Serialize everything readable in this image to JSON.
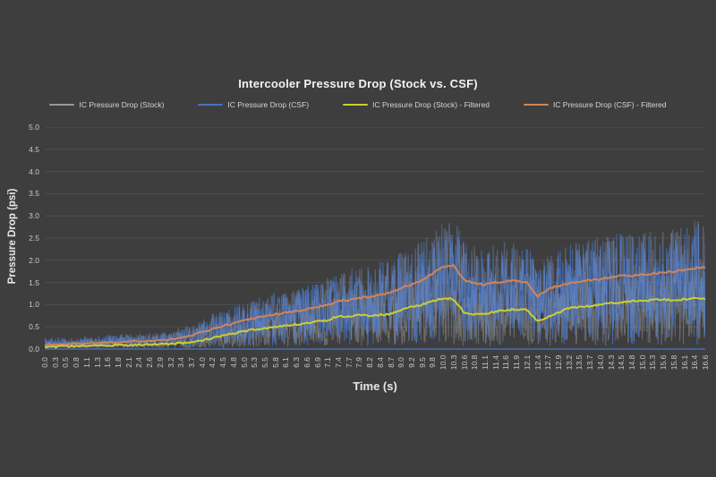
{
  "window": {
    "background": "#3e3e3e"
  },
  "chart": {
    "title": "Intercooler Pressure Drop (Stock vs. CSF)",
    "x_axis_title": "Time (s)",
    "y_axis_title": "Pressure Drop (psi)",
    "legend": [
      {
        "label": "IC Pressure Drop (Stock)",
        "color": "#9a9a9a"
      },
      {
        "label": "IC Pressure Drop (CSF)",
        "color": "#4472c4"
      },
      {
        "label": "IC Pressure Drop (Stock) - Filtered",
        "color": "#c9cf33"
      },
      {
        "label": "IC Pressure Drop (CSF) - Filtered",
        "color": "#d0845a"
      }
    ]
  },
  "chart_data": {
    "type": "line",
    "title": "Intercooler Pressure Drop (Stock vs. CSF)",
    "xlabel": "Time (s)",
    "ylabel": "Pressure Drop (psi)",
    "ylim": [
      0,
      5
    ],
    "ytick_labels": [
      "5.0",
      "4.5",
      "4.0",
      "3.5",
      "3.0",
      "2.5",
      "2.0",
      "1.5",
      "1.0",
      "0.5",
      "0.0"
    ],
    "grid": true,
    "legend_position": "top",
    "background": "#3e3e3e",
    "gridline_color": "#4f4f4f",
    "baseline_color": "#4a6db0",
    "noise_seed": 1234,
    "samples": 1300,
    "categories": [
      "0.0",
      "0.3",
      "0.5",
      "0.8",
      "1.1",
      "1.3",
      "1.6",
      "1.8",
      "2.1",
      "2.4",
      "2.6",
      "2.9",
      "3.2",
      "3.4",
      "3.7",
      "4.0",
      "4.2",
      "4.5",
      "4.8",
      "5.0",
      "5.3",
      "5.5",
      "5.8",
      "6.1",
      "6.3",
      "6.6",
      "6.9",
      "7.1",
      "7.4",
      "7.7",
      "7.9",
      "8.2",
      "8.4",
      "8.7",
      "9.0",
      "9.2",
      "9.5",
      "9.8",
      "10.0",
      "10.3",
      "10.6",
      "10.8",
      "11.1",
      "11.4",
      "11.6",
      "11.9",
      "12.1",
      "12.4",
      "12.7",
      "12.9",
      "13.2",
      "13.5",
      "13.7",
      "14.0",
      "14.3",
      "14.5",
      "14.8",
      "15.0",
      "15.3",
      "15.6",
      "15.8",
      "16.1",
      "16.4",
      "16.6"
    ],
    "series": [
      {
        "name": "IC Pressure Drop (Stock)",
        "style": "noisy",
        "color": "#979797",
        "opacity": 0.5,
        "width": 1,
        "center_ref": "IC Pressure Drop (Stock) - Filtered",
        "noise_lo": 0.05,
        "noise_hi": 1.62,
        "jitter_floor": 0.04,
        "dropout": 0.0
      },
      {
        "name": "IC Pressure Drop (CSF)",
        "style": "noisy",
        "color": "#4472c4",
        "highlight_color": "#8aa4d9",
        "opacity": 0.8,
        "width": 1,
        "center_ref": "IC Pressure Drop (CSF) - Filtered",
        "noise_lo": 0.25,
        "noise_hi": 1.55,
        "jitter_floor": 0.1,
        "dropout": 0.05
      },
      {
        "name": "IC Pressure Drop (Stock) - Filtered",
        "style": "smooth",
        "color": "#c9cf33",
        "opacity": 1,
        "width": 2,
        "values": [
          0.05,
          0.05,
          0.06,
          0.06,
          0.07,
          0.07,
          0.08,
          0.08,
          0.09,
          0.1,
          0.1,
          0.11,
          0.12,
          0.13,
          0.15,
          0.2,
          0.25,
          0.3,
          0.35,
          0.4,
          0.44,
          0.47,
          0.5,
          0.53,
          0.55,
          0.58,
          0.62,
          0.65,
          0.75,
          0.72,
          0.78,
          0.74,
          0.76,
          0.78,
          0.88,
          0.95,
          1.0,
          1.08,
          1.15,
          1.12,
          0.82,
          0.78,
          0.78,
          0.85,
          0.88,
          0.9,
          0.88,
          0.62,
          0.72,
          0.82,
          0.92,
          0.95,
          0.97,
          1.0,
          1.05,
          1.05,
          1.08,
          1.08,
          1.1,
          1.12,
          1.1,
          1.12,
          1.15,
          1.12
        ]
      },
      {
        "name": "IC Pressure Drop (CSF) - Filtered",
        "style": "smooth",
        "color": "#d0845a",
        "opacity": 1,
        "width": 2,
        "values": [
          0.1,
          0.1,
          0.11,
          0.12,
          0.13,
          0.14,
          0.15,
          0.16,
          0.17,
          0.18,
          0.19,
          0.2,
          0.22,
          0.25,
          0.3,
          0.38,
          0.45,
          0.52,
          0.58,
          0.65,
          0.7,
          0.74,
          0.78,
          0.82,
          0.85,
          0.9,
          0.95,
          1.0,
          1.08,
          1.1,
          1.15,
          1.18,
          1.22,
          1.28,
          1.38,
          1.45,
          1.55,
          1.7,
          1.85,
          1.88,
          1.55,
          1.48,
          1.45,
          1.5,
          1.52,
          1.55,
          1.5,
          1.18,
          1.35,
          1.42,
          1.48,
          1.52,
          1.55,
          1.58,
          1.62,
          1.65,
          1.65,
          1.68,
          1.7,
          1.72,
          1.75,
          1.78,
          1.82,
          1.85
        ]
      }
    ]
  }
}
